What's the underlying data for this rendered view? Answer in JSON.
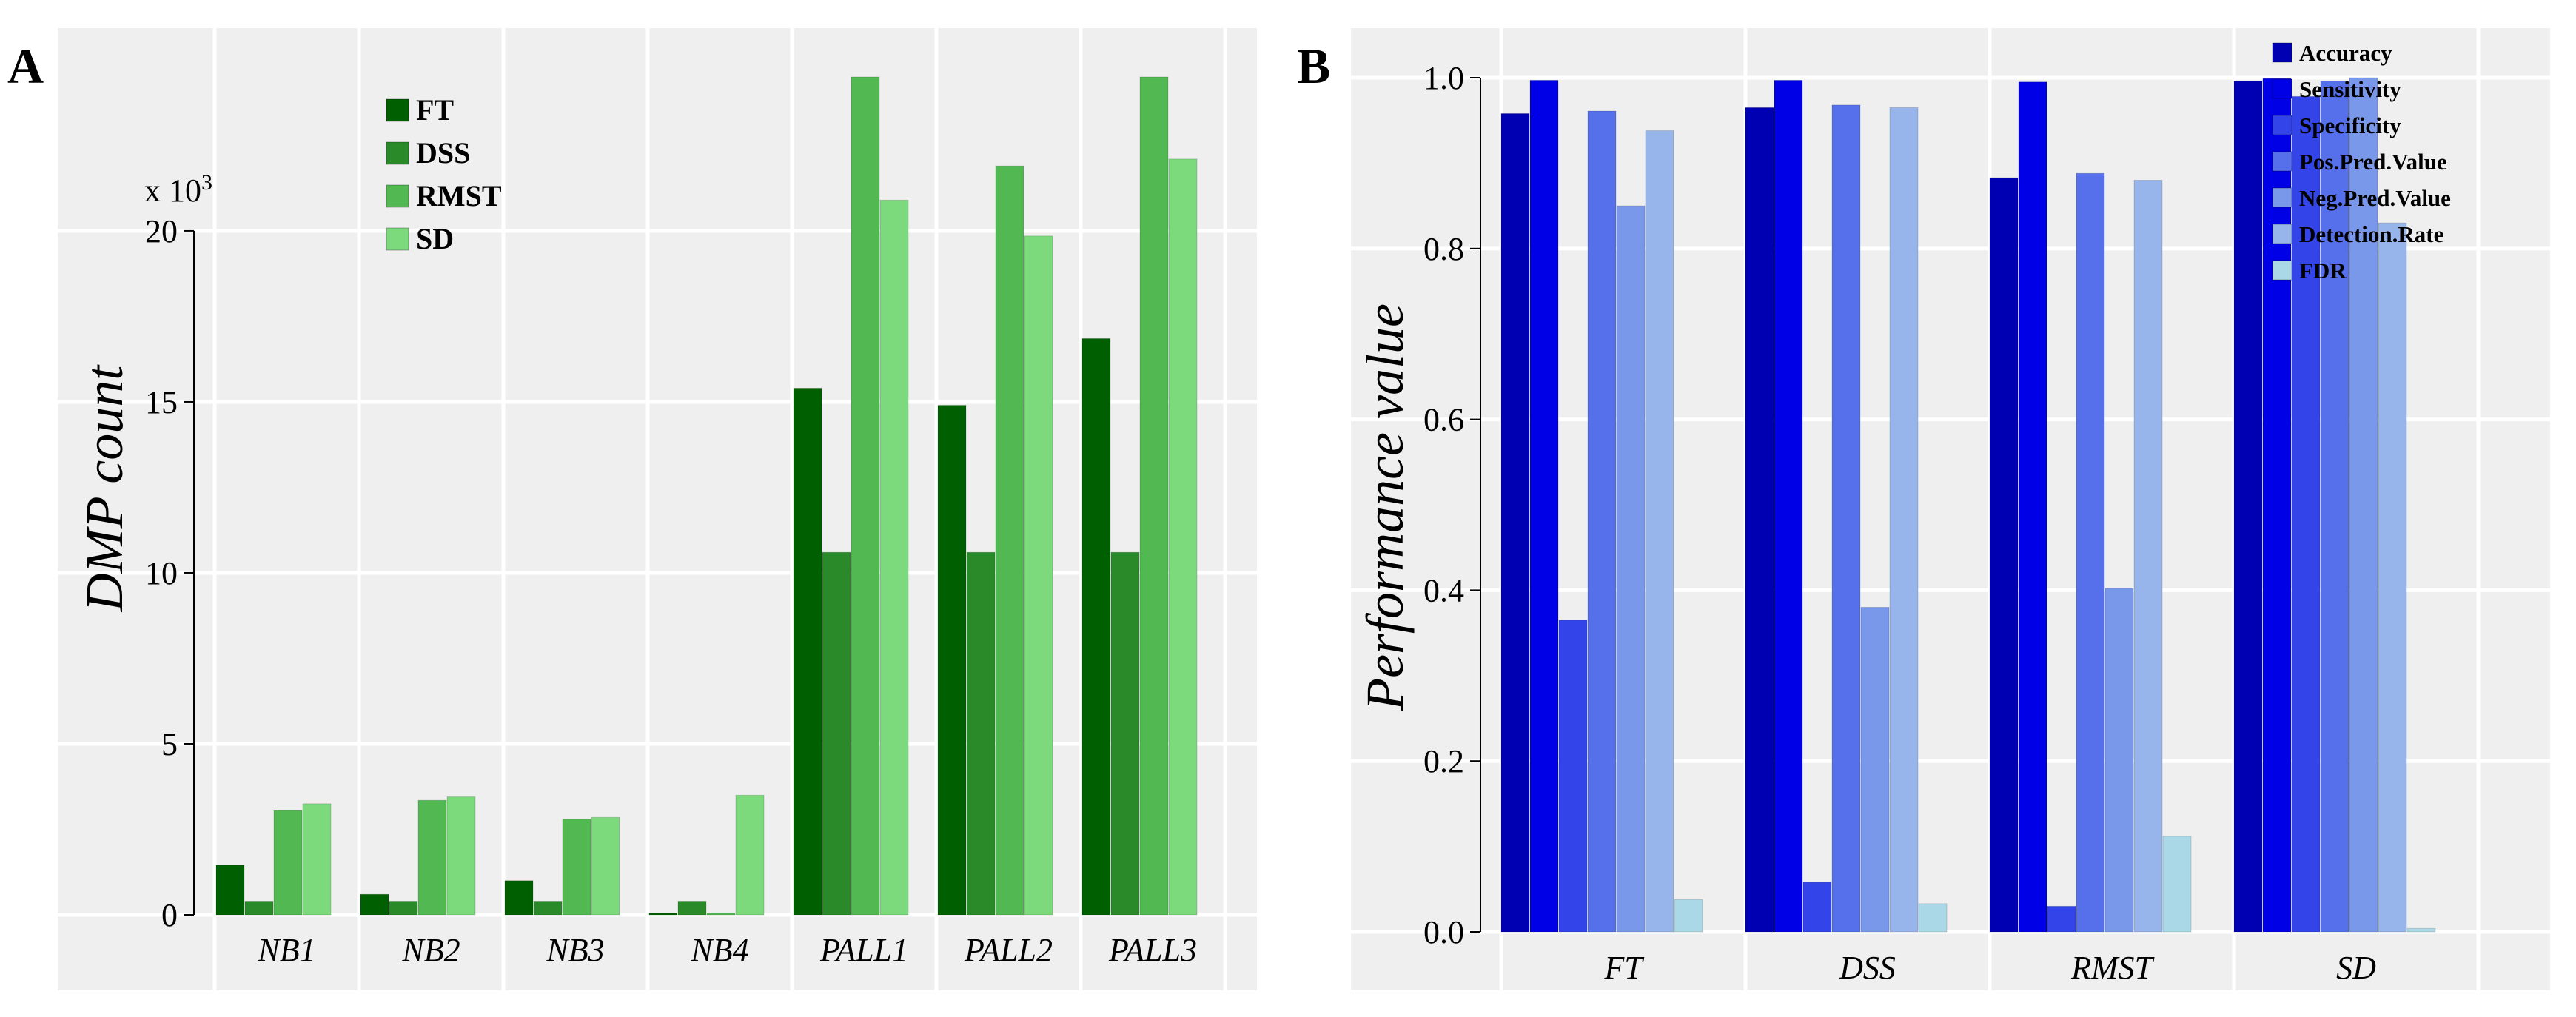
{
  "chart_data": [
    {
      "panel": "A",
      "type": "bar",
      "title": "",
      "xlabel": "",
      "ylabel": "DMP count",
      "y_multiplier_label": "x 10",
      "y_multiplier_exp": "3",
      "ylim": [
        0,
        24.5
      ],
      "yticks": [
        0,
        5,
        10,
        15,
        20
      ],
      "ytick_labels": [
        "0",
        "5",
        "10",
        "15",
        "20"
      ],
      "categories": [
        "NB1",
        "NB2",
        "NB3",
        "NB4",
        "PALL1",
        "PALL2",
        "PALL3"
      ],
      "series": [
        {
          "name": "FT",
          "color": "#005f00",
          "values": [
            1.45,
            0.6,
            1.0,
            0.05,
            15.4,
            14.9,
            16.85
          ]
        },
        {
          "name": "DSS",
          "color": "#2a8a2a",
          "values": [
            0.4,
            0.4,
            0.4,
            0.4,
            10.6,
            10.6,
            10.6
          ]
        },
        {
          "name": "RMST",
          "color": "#52b852",
          "values": [
            3.05,
            3.35,
            2.8,
            0.05,
            24.5,
            21.9,
            24.5
          ]
        },
        {
          "name": "SD",
          "color": "#7cd97c",
          "values": [
            3.25,
            3.45,
            2.85,
            3.5,
            20.9,
            19.85,
            22.1
          ]
        }
      ]
    },
    {
      "panel": "B",
      "type": "bar",
      "title": "",
      "xlabel": "",
      "ylabel": "Performance value",
      "ylim": [
        0,
        1.0
      ],
      "yticks": [
        0,
        0.2,
        0.4,
        0.6,
        0.8,
        1.0
      ],
      "ytick_labels": [
        "0.0",
        "0.2",
        "0.4",
        "0.6",
        "0.8",
        "1.0"
      ],
      "categories": [
        "FT",
        "DSS",
        "RMST",
        "SD"
      ],
      "series": [
        {
          "name": "Accuracy",
          "color": "#0000b3",
          "values": [
            0.958,
            0.965,
            0.883,
            0.996
          ]
        },
        {
          "name": "Sensitivity",
          "color": "#0000e6",
          "values": [
            0.997,
            0.997,
            0.995,
            0.999
          ]
        },
        {
          "name": "Specificity",
          "color": "#3344e8",
          "values": [
            0.365,
            0.058,
            0.03,
            0.978
          ]
        },
        {
          "name": "Pos.Pred.Value",
          "color": "#5570ea",
          "values": [
            0.961,
            0.968,
            0.888,
            0.996
          ]
        },
        {
          "name": "Neg.Pred.Value",
          "color": "#7a98ea",
          "values": [
            0.85,
            0.38,
            0.402,
            1.0
          ]
        },
        {
          "name": "Detection.Rate",
          "color": "#97b5ea",
          "values": [
            0.938,
            0.965,
            0.88,
            0.83
          ]
        },
        {
          "name": "FDR",
          "color": "#aad8e6",
          "values": [
            0.038,
            0.033,
            0.112,
            0.004
          ]
        }
      ]
    }
  ]
}
